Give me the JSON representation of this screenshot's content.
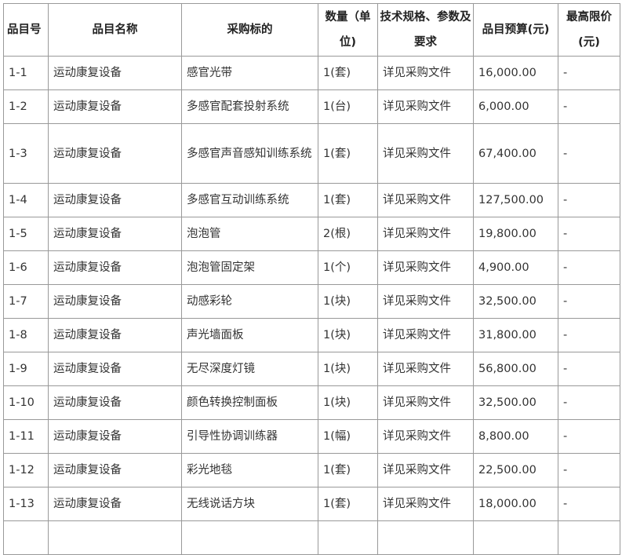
{
  "table": {
    "headers": [
      "品目号",
      "品目名称",
      "采购标的",
      "数量（单位)",
      "技术规格、参数及要求",
      "品目预算(元)",
      "最高限价(元)"
    ],
    "rows": [
      [
        "1-1",
        "运动康复设备",
        "感官光带",
        "1(套)",
        "详见采购文件",
        "16,000.00",
        "-"
      ],
      [
        "1-2",
        "运动康复设备",
        "多感官配套投射系统",
        "1(台)",
        "详见采购文件",
        "6,000.00",
        "-"
      ],
      [
        "1-3",
        "运动康复设备",
        "多感官声音感知训练系统",
        "1(套)",
        "详见采购文件",
        "67,400.00",
        "-"
      ],
      [
        "1-4",
        "运动康复设备",
        "多感官互动训练系统",
        "1(套)",
        "详见采购文件",
        "127,500.00",
        "-"
      ],
      [
        "1-5",
        "运动康复设备",
        "泡泡管",
        "2(根)",
        "详见采购文件",
        "19,800.00",
        "-"
      ],
      [
        "1-6",
        "运动康复设备",
        "泡泡管固定架",
        "1(个)",
        "详见采购文件",
        "4,900.00",
        "-"
      ],
      [
        "1-7",
        "运动康复设备",
        "动感彩轮",
        "1(块)",
        "详见采购文件",
        "32,500.00",
        "-"
      ],
      [
        "1-8",
        "运动康复设备",
        "声光墙面板",
        "1(块)",
        "详见采购文件",
        "31,800.00",
        "-"
      ],
      [
        "1-9",
        "运动康复设备",
        "无尽深度灯镜",
        "1(块)",
        "详见采购文件",
        "56,800.00",
        "-"
      ],
      [
        "1-10",
        "运动康复设备",
        "颜色转换控制面板",
        "1(块)",
        "详见采购文件",
        "32,500.00",
        "-"
      ],
      [
        "1-11",
        "运动康复设备",
        "引导性协调训练器",
        "1(幅)",
        "详见采购文件",
        "8,800.00",
        "-"
      ],
      [
        "1-12",
        "运动康复设备",
        "彩光地毯",
        "1(套)",
        "详见采购文件",
        "22,500.00",
        "-"
      ],
      [
        "1-13",
        "运动康复设备",
        "无线说话方块",
        "1(套)",
        "详见采购文件",
        "18,000.00",
        "-"
      ]
    ]
  }
}
